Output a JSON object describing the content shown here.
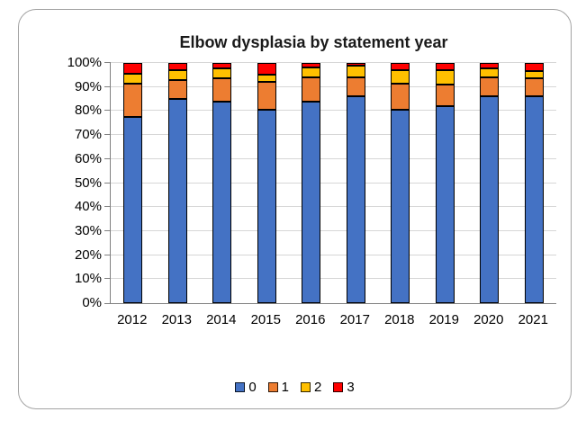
{
  "colors": {
    "frame_border": "#a3a3a3",
    "axis": "#808080",
    "gridline": "#d6d6d6",
    "bar_outline": "#000000"
  },
  "chart_data": {
    "type": "bar",
    "stacked": true,
    "percent": true,
    "title": "Elbow dysplasia by statement year",
    "xlabel": "",
    "ylabel": "",
    "categories": [
      "2012",
      "2013",
      "2014",
      "2015",
      "2016",
      "2017",
      "2018",
      "2019",
      "2020",
      "2021"
    ],
    "series": [
      {
        "name": "0",
        "color": "#4472c4",
        "values": [
          77.5,
          85.0,
          84.0,
          80.5,
          84.0,
          86.0,
          80.5,
          82.0,
          86.2,
          86.0
        ]
      },
      {
        "name": "1",
        "color": "#ed7d31",
        "values": [
          14.0,
          8.0,
          9.5,
          11.5,
          10.0,
          8.2,
          11.0,
          9.2,
          7.8,
          7.5
        ]
      },
      {
        "name": "2",
        "color": "#ffc000",
        "values": [
          4.0,
          4.0,
          4.3,
          3.2,
          4.0,
          4.8,
          5.5,
          5.8,
          3.8,
          3.0
        ]
      },
      {
        "name": "3",
        "color": "#ff0000",
        "values": [
          4.5,
          3.0,
          2.2,
          4.8,
          2.0,
          1.0,
          3.0,
          3.0,
          2.2,
          3.5
        ]
      }
    ],
    "y_ticks": [
      "0%",
      "10%",
      "20%",
      "30%",
      "40%",
      "50%",
      "60%",
      "70%",
      "80%",
      "90%",
      "100%"
    ],
    "ylim": [
      0,
      100
    ],
    "grid": true,
    "legend_position": "bottom"
  }
}
